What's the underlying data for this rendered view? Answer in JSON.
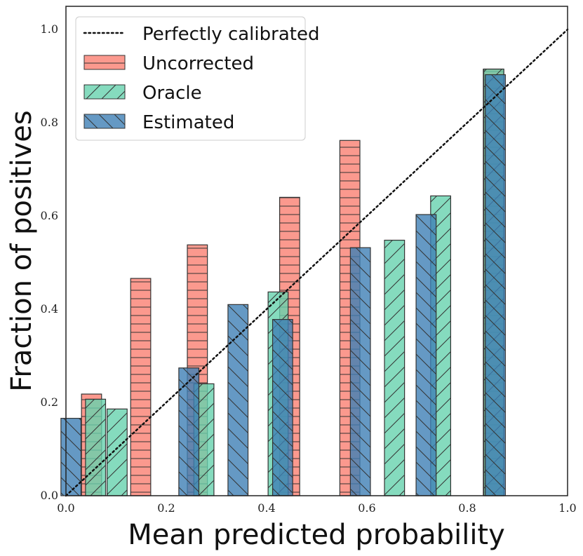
{
  "chart_data": {
    "type": "bar",
    "title": "",
    "xlabel": "Mean predicted probability",
    "ylabel": "Fraction of positives",
    "xlim": [
      0.0,
      1.0
    ],
    "ylim": [
      0.0,
      1.05
    ],
    "xticks": [
      "0.0",
      "0.2",
      "0.4",
      "0.6",
      "0.8",
      "1.0"
    ],
    "yticks": [
      "0.0",
      "0.2",
      "0.4",
      "0.6",
      "0.8",
      "1.0"
    ],
    "legend_position": "top-left",
    "reference_line": {
      "name": "Perfectly calibrated",
      "style": "dotted",
      "color": "#111111",
      "points": [
        [
          0,
          0
        ],
        [
          1,
          1
        ]
      ]
    },
    "series": [
      {
        "name": "Uncorrected",
        "color": "#fa8072",
        "hatch": "horizontal",
        "bars": [
          {
            "x": 0.051,
            "y": 0.218
          },
          {
            "x": 0.149,
            "y": 0.466
          },
          {
            "x": 0.262,
            "y": 0.538
          },
          {
            "x": 0.446,
            "y": 0.64
          },
          {
            "x": 0.566,
            "y": 0.762
          },
          {
            "x": 0.852,
            "y": 0.915
          }
        ]
      },
      {
        "name": "Oracle",
        "color": "#66d2ae",
        "hatch": "diagonal-forward",
        "bars": [
          {
            "x": 0.059,
            "y": 0.207
          },
          {
            "x": 0.102,
            "y": 0.186
          },
          {
            "x": 0.275,
            "y": 0.24
          },
          {
            "x": 0.423,
            "y": 0.437
          },
          {
            "x": 0.655,
            "y": 0.548
          },
          {
            "x": 0.747,
            "y": 0.643
          },
          {
            "x": 0.853,
            "y": 0.915
          }
        ]
      },
      {
        "name": "Estimated",
        "color": "#3f80b5",
        "hatch": "diagonal-back",
        "bars": [
          {
            "x": 0.01,
            "y": 0.166
          },
          {
            "x": 0.245,
            "y": 0.274
          },
          {
            "x": 0.343,
            "y": 0.41
          },
          {
            "x": 0.432,
            "y": 0.378
          },
          {
            "x": 0.587,
            "y": 0.532
          },
          {
            "x": 0.718,
            "y": 0.603
          },
          {
            "x": 0.856,
            "y": 0.903
          }
        ]
      }
    ]
  }
}
